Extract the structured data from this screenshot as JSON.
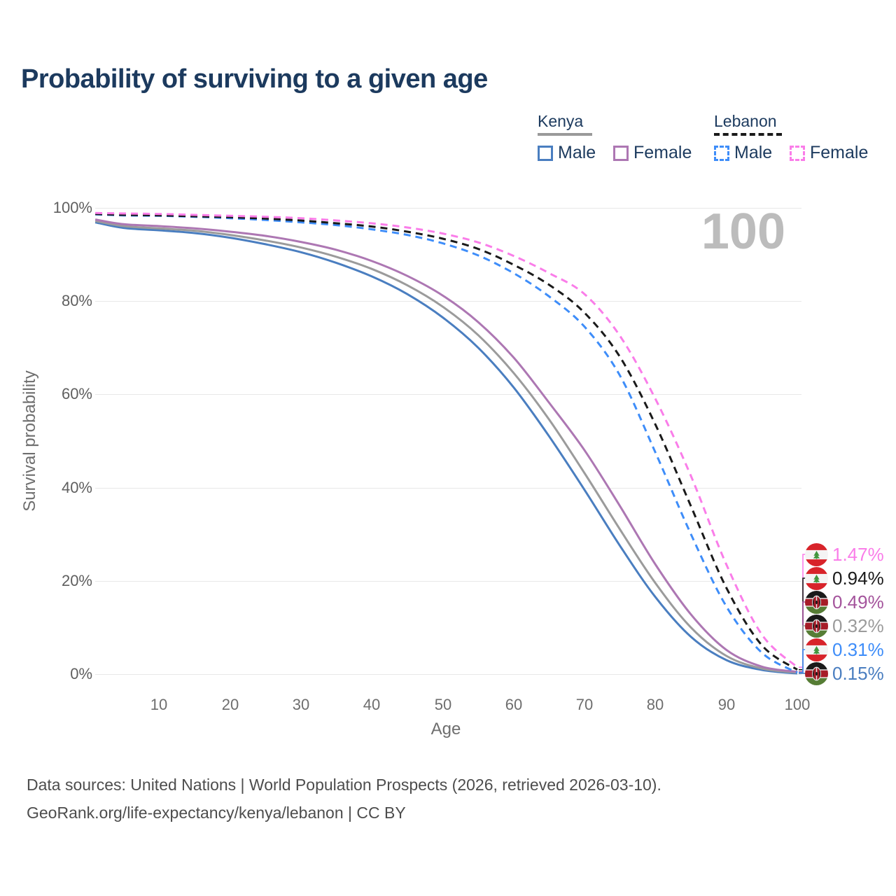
{
  "title": "Probability of surviving to a given age",
  "watermark_age": "100",
  "legend": {
    "groups": [
      {
        "name": "Kenya",
        "line_style": "solid",
        "underline_color": "#9a9a9a",
        "items": [
          {
            "label": "Male",
            "color": "#4a7ec0"
          },
          {
            "label": "Female",
            "color": "#ad77b3"
          }
        ]
      },
      {
        "name": "Lebanon",
        "line_style": "dashed",
        "underline_color": "#1a1a1a",
        "items": [
          {
            "label": "Male",
            "color": "#3e8df9"
          },
          {
            "label": "Female",
            "color": "#fa7de9"
          }
        ]
      }
    ]
  },
  "axes": {
    "y_label": "Survival probability",
    "x_label": "Age",
    "y_ticks": [
      "100%",
      "80%",
      "60%",
      "40%",
      "20%",
      "0%"
    ],
    "y_tick_values": [
      100,
      80,
      60,
      40,
      20,
      0
    ],
    "x_ticks": [
      "10",
      "20",
      "30",
      "40",
      "50",
      "60",
      "70",
      "80",
      "90",
      "100"
    ],
    "x_tick_values": [
      10,
      20,
      30,
      40,
      50,
      60,
      70,
      80,
      90,
      100
    ]
  },
  "chart_data": {
    "type": "line",
    "title": "Probability of surviving to a given age",
    "xlabel": "Age",
    "ylabel": "Survival probability",
    "x_range": [
      0,
      100
    ],
    "ylim_percent": [
      0,
      100
    ],
    "grid": "horizontal",
    "legend_position": "top-right",
    "x": [
      1,
      5,
      10,
      15,
      20,
      25,
      30,
      35,
      40,
      45,
      50,
      55,
      60,
      65,
      70,
      75,
      80,
      85,
      90,
      95,
      100
    ],
    "series": [
      {
        "id": "kenya_male",
        "name": "Kenya Male",
        "country": "Kenya",
        "sex": "Male",
        "style": "solid",
        "color": "#4a7ec0",
        "values": [
          96.9,
          95.7,
          95.2,
          94.6,
          93.6,
          92.2,
          90.5,
          88.2,
          85.3,
          81.5,
          76.5,
          70.0,
          61.5,
          51.0,
          39.5,
          27.5,
          16.5,
          8.0,
          3.0,
          0.9,
          0.15
        ]
      },
      {
        "id": "kenya_all",
        "name": "Kenya Both sexes",
        "country": "Kenya",
        "sex": "Both",
        "style": "solid",
        "color": "#9b9b9b",
        "values": [
          97.2,
          96.1,
          95.6,
          95.1,
          94.2,
          93.0,
          91.5,
          89.5,
          86.9,
          83.4,
          78.8,
          72.7,
          64.6,
          54.6,
          43.1,
          31.0,
          19.5,
          10.0,
          3.9,
          1.2,
          0.32
        ]
      },
      {
        "id": "kenya_female",
        "name": "Kenya Female",
        "country": "Kenya",
        "sex": "Female",
        "style": "solid",
        "color": "#ad77b3",
        "values": [
          97.5,
          96.5,
          96.1,
          95.6,
          94.9,
          94.0,
          92.7,
          91.0,
          88.6,
          85.4,
          81.2,
          75.5,
          67.9,
          58.2,
          48.0,
          36.0,
          23.5,
          12.8,
          5.2,
          1.6,
          0.49
        ]
      },
      {
        "id": "lebanon_male",
        "name": "Lebanon Male",
        "country": "Lebanon",
        "sex": "Male",
        "style": "dashed",
        "color": "#3e8df9",
        "values": [
          98.6,
          98.4,
          98.3,
          98.1,
          97.8,
          97.4,
          96.9,
          96.3,
          95.4,
          94.2,
          92.4,
          89.8,
          86.0,
          81.0,
          74.5,
          64.0,
          47.5,
          30.0,
          14.5,
          4.6,
          0.31
        ]
      },
      {
        "id": "lebanon_all",
        "name": "Lebanon Both sexes",
        "country": "Lebanon",
        "sex": "Both",
        "style": "dashed",
        "color": "#1a1a1a",
        "values": [
          98.7,
          98.5,
          98.4,
          98.2,
          98.0,
          97.7,
          97.3,
          96.7,
          96.0,
          94.9,
          93.4,
          91.2,
          87.8,
          83.5,
          77.5,
          68.0,
          53.5,
          36.0,
          18.5,
          6.2,
          0.94
        ]
      },
      {
        "id": "lebanon_female",
        "name": "Lebanon Female",
        "country": "Lebanon",
        "sex": "Female",
        "style": "dashed",
        "color": "#fa7de9",
        "values": [
          98.9,
          98.8,
          98.7,
          98.5,
          98.3,
          98.1,
          97.8,
          97.3,
          96.7,
          95.8,
          94.5,
          92.6,
          89.7,
          86.0,
          81.5,
          72.5,
          59.0,
          42.5,
          23.5,
          8.5,
          1.47
        ]
      }
    ],
    "end_labels": [
      {
        "value": "1.47%",
        "series_id": "lebanon_female",
        "country": "Lebanon",
        "color": "#fa7de9"
      },
      {
        "value": "0.94%",
        "series_id": "lebanon_all",
        "country": "Lebanon",
        "color": "#1a1a1a"
      },
      {
        "value": "0.49%",
        "series_id": "kenya_female",
        "country": "Kenya",
        "color": "#a4549c"
      },
      {
        "value": "0.32%",
        "series_id": "kenya_all",
        "country": "Kenya",
        "color": "#9b9b9b"
      },
      {
        "value": "0.31%",
        "series_id": "lebanon_male",
        "country": "Lebanon",
        "color": "#3e8df9"
      },
      {
        "value": "0.15%",
        "series_id": "kenya_male",
        "country": "Kenya",
        "color": "#4a7ec0"
      }
    ]
  },
  "footer": {
    "line1": "Data sources: United Nations | World Population Prospects (2026, retrieved 2026-03-10).",
    "line2": "GeoRank.org/life-expectancy/kenya/lebanon | CC BY"
  }
}
